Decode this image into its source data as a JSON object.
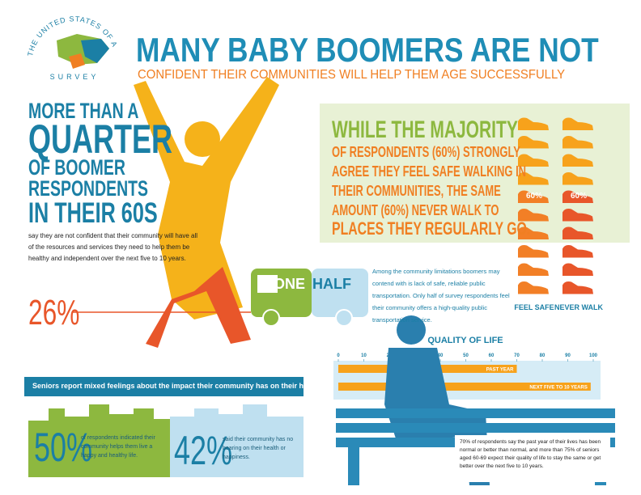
{
  "logo": {
    "arc_text": "THE UNITED STATES OF AGING",
    "survey": "SURVEY"
  },
  "header": {
    "title": "MANY BABY BOOMERS ARE NOT",
    "subtitle": "CONFIDENT THEIR COMMUNITIES WILL HELP THEM AGE SUCCESSFULLY"
  },
  "quarter": {
    "lines": [
      "MORE THAN A",
      "QUARTER",
      "OF BOOMER",
      "RESPONDENTS",
      "IN THEIR 60S"
    ],
    "body": "say they are not confident that their community will have all of the resources and services they need to help them be healthy and independent over the next five to 10 years.",
    "stat": "26%"
  },
  "walking": {
    "lines": [
      "WHILE THE MAJORITY",
      "OF RESPONDENTS (60%) STRONGLY",
      "AGREE THEY FEEL SAFE WALKING IN",
      "THEIR COMMUNITIES, THE SAME",
      "AMOUNT (60%) NEVER WALK TO",
      "PLACES THEY REGULARLY GO."
    ]
  },
  "transit": {
    "bus": [
      "ONE",
      "HALF"
    ],
    "body": "Among the community limitations boomers may contend with is lack of safe, reliable public transportation. Only half of survey respondents feel their community offers a high-quality public transportation service."
  },
  "health": {
    "banner": "Seniors report mixed feelings about the impact their community has on their health.",
    "stats": [
      {
        "value": "50%",
        "text": "of respondents indicated their community helps them live a happy and healthy life."
      },
      {
        "value": "42%",
        "text": "said their community has no bearing on their health or happiness."
      }
    ]
  },
  "quality_note": "70% of respondents say the past year of their lives has been normal or better than normal, and more than 75% of seniors aged 60-69 expect their quality of life to stay the same or get better over the next five to 10 years.",
  "chart_data": [
    {
      "type": "pictogram",
      "categories": [
        "FEEL SAFE",
        "NEVER WALK"
      ],
      "values": [
        60,
        60
      ],
      "value_labels": [
        "60%",
        "60%"
      ],
      "colors": [
        "#f27f26",
        "#e8562a"
      ]
    },
    {
      "type": "bar",
      "title": "QUALITY OF LIFE",
      "categories": [
        "PAST YEAR",
        "NEXT FIVE TO 10 YEARS"
      ],
      "values": [
        70,
        99
      ],
      "color": "#f7a21b",
      "xlim": [
        0,
        100
      ],
      "xticks": [
        0,
        10,
        20,
        30,
        40,
        50,
        60,
        70,
        80,
        90,
        100
      ]
    }
  ]
}
